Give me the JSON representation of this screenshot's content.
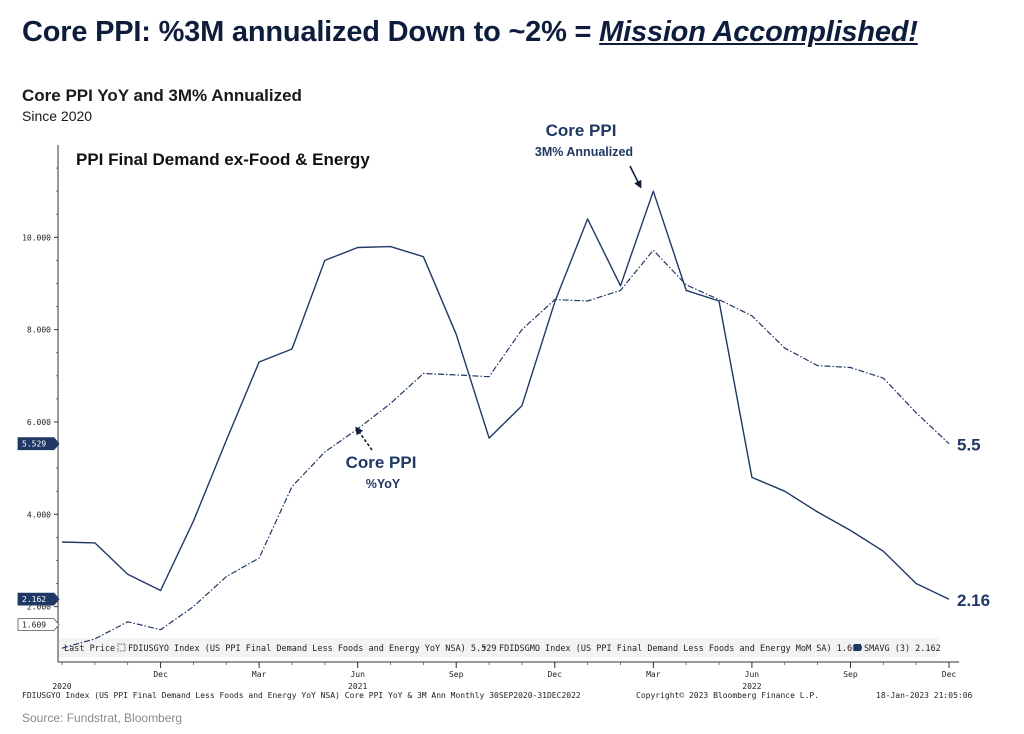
{
  "headline": {
    "prefix": "Core PPI: %3M annualized Down to ~2% = ",
    "emphasis": "Mission Accomplished!"
  },
  "subtitle": "Core PPI YoY and 3M% Annualized",
  "since": "Since 2020",
  "source": "Source: Fundstrat, Bloomberg",
  "chart_data": {
    "type": "line",
    "title": "PPI Final Demand ex-Food & Energy",
    "x": [
      "2020-09",
      "2020-10",
      "2020-11",
      "2020-12",
      "2021-01",
      "2021-02",
      "2021-03",
      "2021-04",
      "2021-05",
      "2021-06",
      "2021-07",
      "2021-08",
      "2021-09",
      "2021-10",
      "2021-11",
      "2021-12",
      "2022-01",
      "2022-02",
      "2022-03",
      "2022-04",
      "2022-05",
      "2022-06",
      "2022-07",
      "2022-08",
      "2022-09",
      "2022-10",
      "2022-11",
      "2022-12"
    ],
    "series": [
      {
        "name": "Core PPI 3M% Annualized",
        "style": "solid",
        "values": [
          3.4,
          3.38,
          2.7,
          2.35,
          3.85,
          5.6,
          7.3,
          7.58,
          9.5,
          9.78,
          9.8,
          9.58,
          7.9,
          5.65,
          6.35,
          8.6,
          10.4,
          8.95,
          11.0,
          8.85,
          8.62,
          4.8,
          4.5,
          4.05,
          3.65,
          3.2,
          2.5,
          2.16
        ]
      },
      {
        "name": "Core PPI %YoY",
        "style": "dashed",
        "values": [
          1.1,
          1.3,
          1.67,
          1.5,
          2.0,
          2.65,
          3.05,
          4.6,
          5.35,
          5.85,
          6.4,
          7.05,
          7.02,
          6.98,
          8.0,
          8.65,
          8.62,
          8.85,
          9.72,
          8.97,
          8.65,
          8.3,
          7.6,
          7.22,
          7.18,
          6.95,
          6.2,
          5.53
        ]
      }
    ],
    "y_ticks": [
      "10.000",
      "8.000",
      "6.000",
      "4.000",
      "2.000"
    ],
    "ylim": [
      0.8,
      12.0
    ],
    "x_month_labels": [
      {
        "date": "2020-12",
        "label": "Dec"
      },
      {
        "date": "2021-03",
        "label": "Mar"
      },
      {
        "date": "2021-06",
        "label": "Jun"
      },
      {
        "date": "2021-09",
        "label": "Sep"
      },
      {
        "date": "2021-12",
        "label": "Dec"
      },
      {
        "date": "2022-03",
        "label": "Mar"
      },
      {
        "date": "2022-06",
        "label": "Jun"
      },
      {
        "date": "2022-09",
        "label": "Sep"
      },
      {
        "date": "2022-12",
        "label": "Dec"
      }
    ],
    "x_year_labels": [
      {
        "date": "2020-09",
        "label": "2020"
      },
      {
        "date": "2021-06",
        "label": "2021"
      },
      {
        "date": "2022-06",
        "label": "2022"
      }
    ],
    "axis_tags": [
      {
        "value": 5.529,
        "label": "5.529",
        "style": "dark"
      },
      {
        "value": 2.162,
        "label": "2.162",
        "style": "dark"
      },
      {
        "value": 1.609,
        "label": "1.609",
        "style": "light"
      }
    ],
    "end_labels": [
      {
        "series": "Core PPI %YoY",
        "label": "5.5"
      },
      {
        "series": "Core PPI 3M% Annualized",
        "label": "2.16"
      }
    ],
    "annotations": [
      {
        "for": "Core PPI 3M% Annualized",
        "title": "Core PPI",
        "subtitle": "3M% Annualized"
      },
      {
        "for": "Core PPI %YoY",
        "title": "Core PPI",
        "subtitle": "%YoY"
      }
    ],
    "legend": {
      "lead": "Last Price",
      "items": [
        "FDIUSGYO Index (US PPI Final Demand Less Foods and Energy YoY NSA) 5.529",
        "FDIDSGMO Index (US PPI Final Demand Less Foods and Energy MoM SA) 1.609",
        "SMAVG (3) 2.162"
      ]
    },
    "footer": {
      "left": "FDIUSGYO Index (US PPI Final Demand Less Foods and Energy YoY NSA) Core PPI YoY & 3M Ann  Monthly 30SEP2020-31DEC2022",
      "center": "Copyright© 2023 Bloomberg Finance L.P.",
      "right": "18-Jan-2023 21:05:06"
    },
    "colors": {
      "line": "#1f3864",
      "text": "#1f3864"
    },
    "grid": false
  }
}
